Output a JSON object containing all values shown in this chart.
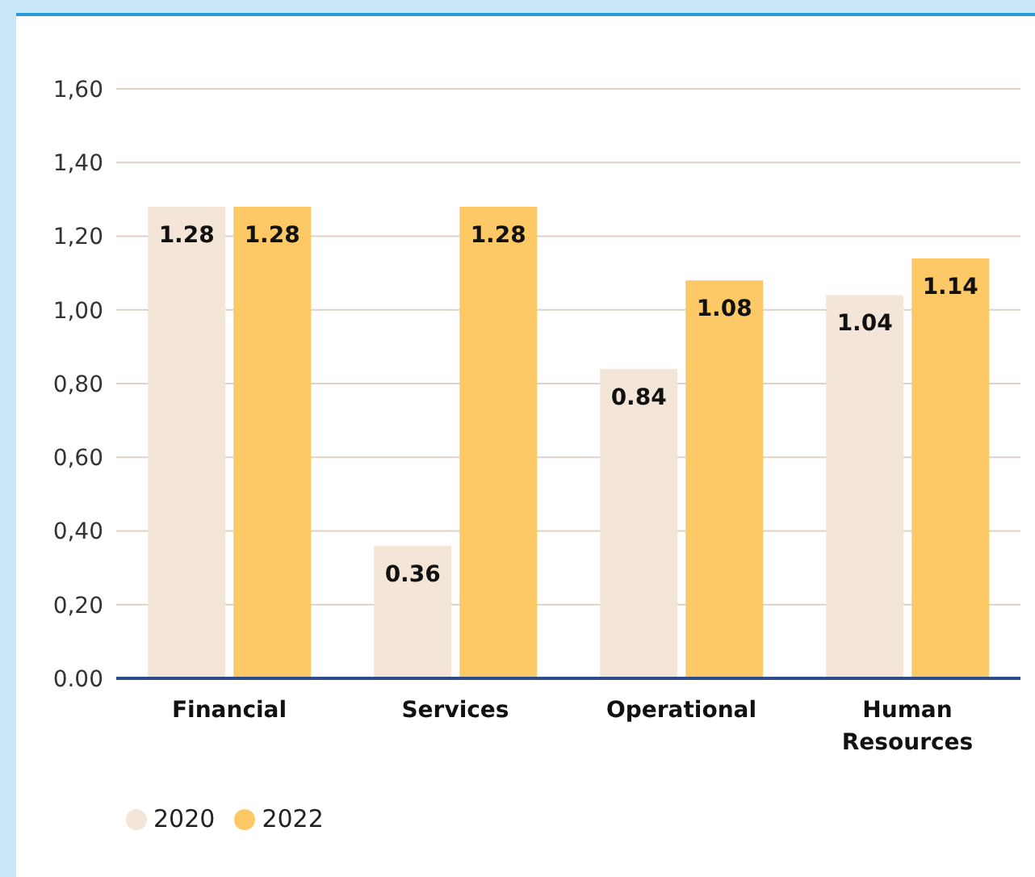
{
  "chart_data": {
    "type": "bar",
    "categories": [
      "Financial",
      "Services",
      "Operational",
      "Human Resources"
    ],
    "series": [
      {
        "name": "2020",
        "color": "#f3e5d7",
        "values": [
          1.28,
          0.36,
          0.84,
          1.04
        ]
      },
      {
        "name": "2022",
        "color": "#fdc966",
        "values": [
          1.28,
          1.28,
          1.08,
          1.14
        ]
      }
    ],
    "ylim": [
      0,
      1.6
    ],
    "yticks": [
      {
        "value": 0,
        "label": "0.00"
      },
      {
        "value": 0.2,
        "label": "0,20"
      },
      {
        "value": 0.4,
        "label": "0,40"
      },
      {
        "value": 0.6,
        "label": "0,60"
      },
      {
        "value": 0.8,
        "label": "0,80"
      },
      {
        "value": 1.0,
        "label": "1,00"
      },
      {
        "value": 1.2,
        "label": "1,20"
      },
      {
        "value": 1.4,
        "label": "1,40"
      },
      {
        "value": 1.6,
        "label": "1,60"
      }
    ],
    "grid": "y",
    "legend": "bottom left",
    "data_labels": true
  }
}
